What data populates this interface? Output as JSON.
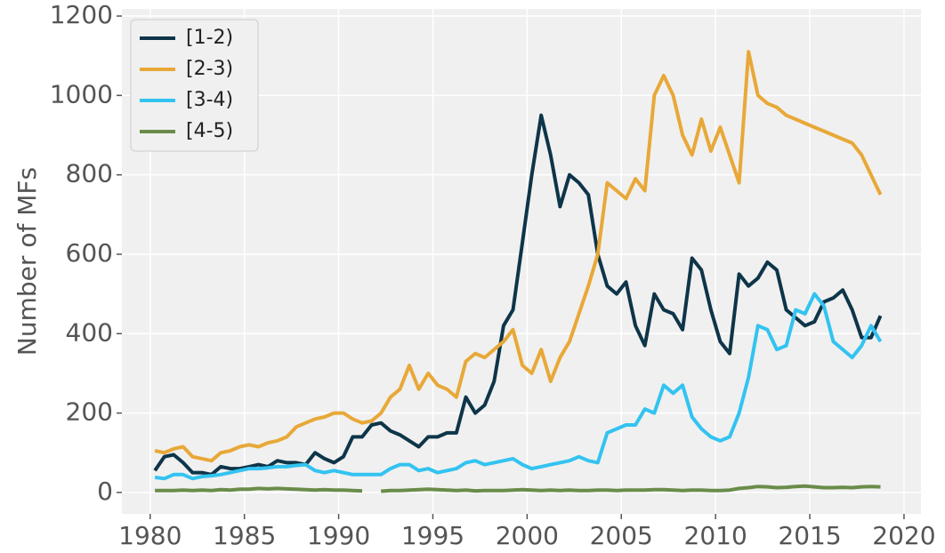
{
  "chart_data": {
    "type": "line",
    "y_label": "Number of MFs",
    "x": [
      1980.25,
      1980.75,
      1981.25,
      1981.75,
      1982.25,
      1982.75,
      1983.25,
      1983.75,
      1984.25,
      1984.75,
      1985.25,
      1985.75,
      1986.25,
      1986.75,
      1987.25,
      1987.75,
      1988.25,
      1988.75,
      1989.25,
      1989.75,
      1990.25,
      1990.75,
      1991.25,
      1991.75,
      1992.25,
      1992.75,
      1993.25,
      1993.75,
      1994.25,
      1994.75,
      1995.25,
      1995.75,
      1996.25,
      1996.75,
      1997.25,
      1997.75,
      1998.25,
      1998.75,
      1999.25,
      1999.75,
      2000.25,
      2000.75,
      2001.25,
      2001.75,
      2002.25,
      2002.75,
      2003.25,
      2003.75,
      2004.25,
      2004.75,
      2005.25,
      2005.75,
      2006.25,
      2006.75,
      2007.25,
      2007.75,
      2008.25,
      2008.75,
      2009.25,
      2009.75,
      2010.25,
      2010.75,
      2011.25,
      2011.75,
      2012.25,
      2012.75,
      2013.25,
      2013.75,
      2014.25,
      2014.75,
      2015.25,
      2015.75,
      2016.25,
      2016.75,
      2017.25,
      2017.75,
      2018.25,
      2018.75
    ],
    "series": [
      {
        "name": "[1-2)",
        "color": "#0e3549",
        "values": [
          55,
          90,
          95,
          75,
          50,
          50,
          45,
          65,
          60,
          60,
          65,
          70,
          65,
          80,
          75,
          75,
          70,
          100,
          85,
          75,
          90,
          140,
          140,
          170,
          175,
          155,
          145,
          130,
          115,
          140,
          140,
          150,
          150,
          240,
          200,
          220,
          280,
          420,
          460,
          630,
          800,
          950,
          850,
          720,
          800,
          780,
          750,
          600,
          520,
          500,
          530,
          420,
          370,
          500,
          460,
          450,
          410,
          590,
          560,
          460,
          380,
          350,
          550,
          520,
          540,
          580,
          560,
          460,
          440,
          420,
          430,
          480,
          490,
          510,
          460,
          390,
          390,
          445
        ]
      },
      {
        "name": "[2-3)",
        "color": "#e8a838",
        "values": [
          105,
          100,
          110,
          115,
          90,
          85,
          80,
          100,
          105,
          115,
          120,
          115,
          125,
          130,
          140,
          165,
          175,
          185,
          190,
          200,
          200,
          185,
          175,
          180,
          200,
          240,
          260,
          320,
          260,
          300,
          270,
          260,
          240,
          330,
          350,
          340,
          360,
          380,
          410,
          320,
          300,
          360,
          280,
          340,
          380,
          450,
          520,
          600,
          780,
          760,
          740,
          790,
          760,
          1000,
          1050,
          1000,
          900,
          850,
          940,
          860,
          920,
          850,
          780,
          1110,
          1000,
          980,
          970,
          950,
          940,
          930,
          920,
          910,
          900,
          890,
          880,
          850,
          800,
          750
        ]
      },
      {
        "name": "[3-4)",
        "color": "#33c3f0",
        "values": [
          38,
          35,
          45,
          45,
          35,
          40,
          42,
          45,
          50,
          55,
          60,
          60,
          62,
          65,
          65,
          68,
          70,
          55,
          50,
          55,
          50,
          45,
          45,
          45,
          45,
          60,
          70,
          70,
          55,
          60,
          50,
          55,
          60,
          75,
          80,
          70,
          75,
          80,
          85,
          70,
          60,
          65,
          70,
          75,
          80,
          90,
          80,
          75,
          150,
          160,
          170,
          170,
          210,
          200,
          270,
          250,
          270,
          190,
          160,
          140,
          130,
          140,
          200,
          290,
          420,
          410,
          360,
          370,
          460,
          450,
          500,
          470,
          380,
          360,
          340,
          370,
          420,
          380
        ]
      },
      {
        "name": "[4-5)",
        "color": "#6a8c4a",
        "values": [
          5,
          5,
          5,
          6,
          5,
          6,
          5,
          7,
          6,
          8,
          8,
          10,
          9,
          10,
          9,
          8,
          7,
          6,
          7,
          6,
          6,
          5,
          4,
          null,
          3,
          5,
          5,
          6,
          7,
          8,
          7,
          6,
          5,
          6,
          4,
          5,
          5,
          5,
          6,
          7,
          6,
          5,
          6,
          5,
          6,
          5,
          5,
          6,
          6,
          5,
          6,
          6,
          6,
          7,
          7,
          6,
          5,
          6,
          6,
          5,
          5,
          6,
          10,
          12,
          15,
          14,
          12,
          13,
          15,
          16,
          14,
          12,
          12,
          13,
          12,
          14,
          15,
          14
        ]
      }
    ],
    "xlim": [
      1978.5,
      2020.9
    ],
    "xticks": [
      1980,
      1985,
      1990,
      1995,
      2000,
      2005,
      2010,
      2015,
      2020
    ],
    "ylim": [
      -54,
      1218
    ],
    "yticks": [
      0,
      200,
      400,
      600,
      800,
      1000,
      1200
    ],
    "grid": true,
    "legend": "upper-left"
  }
}
